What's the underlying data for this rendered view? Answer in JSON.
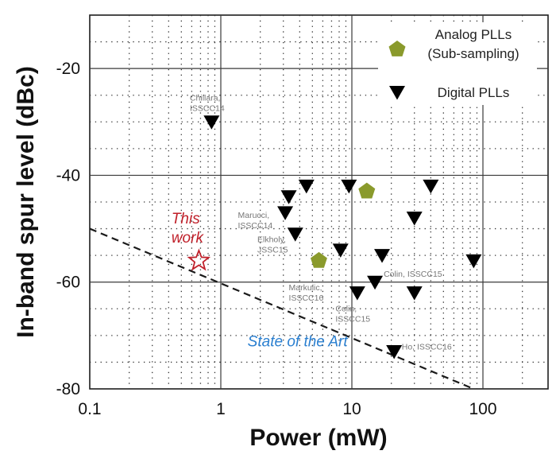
{
  "chart_data": {
    "type": "scatter",
    "xlabel": "Power (mW)",
    "ylabel": "In-band spur level (dBc)",
    "xscale": "log",
    "xlim": [
      0.1,
      300
    ],
    "ylim": [
      -80,
      -10
    ],
    "x_ticks": [
      {
        "value": 0.1,
        "label": "0.1"
      },
      {
        "value": 1,
        "label": "1"
      },
      {
        "value": 10,
        "label": "10"
      },
      {
        "value": 100,
        "label": "100"
      }
    ],
    "y_ticks": [
      {
        "value": -20,
        "label": "-20"
      },
      {
        "value": -40,
        "label": "-40"
      },
      {
        "value": -60,
        "label": "-60"
      },
      {
        "value": -80,
        "label": "-80"
      }
    ],
    "grid": true,
    "legend_position": "top-right",
    "legend": [
      {
        "label_lines": [
          "Analog PLLs",
          "(Sub-sampling)"
        ],
        "marker": "pentagon",
        "color": "#8a9a2c"
      },
      {
        "label_lines": [
          "Digital PLLs"
        ],
        "marker": "triangle-down",
        "color": "#000000"
      }
    ],
    "series": [
      {
        "name": "Analog PLLs (Sub-sampling)",
        "marker": "pentagon",
        "color": "#8a9a2c",
        "points": [
          {
            "x": 5.6,
            "y": -56
          },
          {
            "x": 13,
            "y": -43
          }
        ]
      },
      {
        "name": "Digital PLLs",
        "marker": "triangle-down",
        "color": "#000000",
        "points": [
          {
            "x": 0.85,
            "y": -30
          },
          {
            "x": 3.3,
            "y": -44
          },
          {
            "x": 3.1,
            "y": -47
          },
          {
            "x": 4.5,
            "y": -42
          },
          {
            "x": 3.7,
            "y": -51
          },
          {
            "x": 9.5,
            "y": -42
          },
          {
            "x": 8.2,
            "y": -54
          },
          {
            "x": 17,
            "y": -55
          },
          {
            "x": 15,
            "y": -60
          },
          {
            "x": 11,
            "y": -62
          },
          {
            "x": 30,
            "y": -48
          },
          {
            "x": 40,
            "y": -42
          },
          {
            "x": 30,
            "y": -62
          },
          {
            "x": 85,
            "y": -56
          },
          {
            "x": 21,
            "y": -73
          }
        ]
      },
      {
        "name": "This work",
        "marker": "star",
        "color": "#c0202a",
        "points": [
          {
            "x": 0.68,
            "y": -56
          }
        ]
      }
    ],
    "trend_line": {
      "label": "State of the Art",
      "from": {
        "x": 0.1,
        "y": -50
      },
      "to": {
        "x": 85,
        "y": -80
      }
    },
    "annotations": [
      {
        "lines": [
          "This",
          "work"
        ],
        "x": 0.42,
        "y": -49,
        "style": "this-work"
      },
      {
        "lines": [
          "State of the Art"
        ],
        "x": 1.6,
        "y": -72,
        "style": "sota"
      },
      {
        "lines": [
          "Chillara,",
          "ISSCC14"
        ],
        "x": 0.58,
        "y": -26,
        "style": "ref"
      },
      {
        "lines": [
          "Marucci,",
          "ISSCC14"
        ],
        "x": 1.35,
        "y": -48,
        "style": "ref"
      },
      {
        "lines": [
          "Elkholy,",
          "JSSC15"
        ],
        "x": 1.9,
        "y": -52.5,
        "style": "ref"
      },
      {
        "lines": [
          "Markulic,",
          "ISSCC16"
        ],
        "x": 3.3,
        "y": -61.5,
        "style": "ref"
      },
      {
        "lines": [
          "Colin, ISSCC15"
        ],
        "x": 17.5,
        "y": -59,
        "style": "ref"
      },
      {
        "lines": [
          "Colin,",
          "ISSCC15"
        ],
        "x": 7.5,
        "y": -65.5,
        "style": "ref"
      },
      {
        "lines": [
          "Ho, ISSCC16"
        ],
        "x": 24,
        "y": -72.6,
        "style": "ref"
      }
    ]
  }
}
